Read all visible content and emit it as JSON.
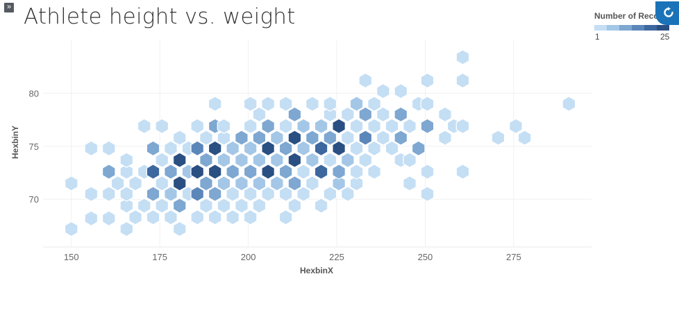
{
  "header": {
    "expand_icon": "double-chevron-right-icon",
    "title": "Athlete height vs. weight",
    "refresh_icon": "refresh-icon"
  },
  "legend": {
    "title": "Number of Records",
    "min": "1",
    "max": "25",
    "colors": [
      "#c4def4",
      "#a4c7e7",
      "#7ea7d1",
      "#5b86ba",
      "#3d679f",
      "#2a4f83"
    ]
  },
  "chart_data": {
    "type": "hexbin",
    "title": "Athlete height vs. weight",
    "xlabel": "HexbinX",
    "ylabel": "HexbinY",
    "xlim": [
      142,
      297
    ],
    "ylim": [
      65.5,
      85
    ],
    "x_ticks": [
      150,
      175,
      200,
      225,
      250,
      275
    ],
    "y_ticks": [
      70,
      75,
      80
    ],
    "grid": true,
    "color_measure": "Number of Records",
    "color_range": [
      1,
      25
    ],
    "points": [
      {
        "x": 150,
        "y": 67.2,
        "v": 1
      },
      {
        "x": 150,
        "y": 71.5,
        "v": 1
      },
      {
        "x": 155.6,
        "y": 68.2,
        "v": 1
      },
      {
        "x": 155.6,
        "y": 70.5,
        "v": 1
      },
      {
        "x": 155.6,
        "y": 74.8,
        "v": 1
      },
      {
        "x": 160.6,
        "y": 68.2,
        "v": 1
      },
      {
        "x": 160.6,
        "y": 70.5,
        "v": 1
      },
      {
        "x": 160.6,
        "y": 72.6,
        "v": 3
      },
      {
        "x": 160.6,
        "y": 74.8,
        "v": 1
      },
      {
        "x": 163.1,
        "y": 71.5,
        "v": 1
      },
      {
        "x": 165.6,
        "y": 67.2,
        "v": 1
      },
      {
        "x": 165.6,
        "y": 69.4,
        "v": 1
      },
      {
        "x": 165.6,
        "y": 70.5,
        "v": 1
      },
      {
        "x": 165.6,
        "y": 72.6,
        "v": 1
      },
      {
        "x": 165.6,
        "y": 73.7,
        "v": 1
      },
      {
        "x": 168.1,
        "y": 68.3,
        "v": 1
      },
      {
        "x": 168.1,
        "y": 71.5,
        "v": 1
      },
      {
        "x": 170.6,
        "y": 69.4,
        "v": 1
      },
      {
        "x": 170.6,
        "y": 72.6,
        "v": 1
      },
      {
        "x": 170.6,
        "y": 76.9,
        "v": 1
      },
      {
        "x": 173.1,
        "y": 68.3,
        "v": 1
      },
      {
        "x": 173.1,
        "y": 70.5,
        "v": 3
      },
      {
        "x": 173.1,
        "y": 72.6,
        "v": 5
      },
      {
        "x": 173.1,
        "y": 74.8,
        "v": 3
      },
      {
        "x": 175.6,
        "y": 69.4,
        "v": 1
      },
      {
        "x": 175.6,
        "y": 71.5,
        "v": 1
      },
      {
        "x": 175.6,
        "y": 73.7,
        "v": 1
      },
      {
        "x": 175.6,
        "y": 76.9,
        "v": 1
      },
      {
        "x": 178.1,
        "y": 68.3,
        "v": 1
      },
      {
        "x": 178.1,
        "y": 70.5,
        "v": 2
      },
      {
        "x": 178.1,
        "y": 72.6,
        "v": 3
      },
      {
        "x": 178.1,
        "y": 74.8,
        "v": 1
      },
      {
        "x": 180.6,
        "y": 67.2,
        "v": 1
      },
      {
        "x": 180.6,
        "y": 69.4,
        "v": 3
      },
      {
        "x": 180.6,
        "y": 71.5,
        "v": 6
      },
      {
        "x": 180.6,
        "y": 73.7,
        "v": 6
      },
      {
        "x": 180.6,
        "y": 75.8,
        "v": 1
      },
      {
        "x": 183.1,
        "y": 70.5,
        "v": 1
      },
      {
        "x": 183.1,
        "y": 72.6,
        "v": 2
      },
      {
        "x": 183.1,
        "y": 74.8,
        "v": 1
      },
      {
        "x": 185.6,
        "y": 68.3,
        "v": 1
      },
      {
        "x": 185.6,
        "y": 70.5,
        "v": 4
      },
      {
        "x": 185.6,
        "y": 72.6,
        "v": 6
      },
      {
        "x": 185.6,
        "y": 74.8,
        "v": 4
      },
      {
        "x": 185.6,
        "y": 76.9,
        "v": 1
      },
      {
        "x": 188.1,
        "y": 69.4,
        "v": 1
      },
      {
        "x": 188.1,
        "y": 71.5,
        "v": 3
      },
      {
        "x": 188.1,
        "y": 73.7,
        "v": 3
      },
      {
        "x": 188.1,
        "y": 75.8,
        "v": 1
      },
      {
        "x": 190.6,
        "y": 68.3,
        "v": 1
      },
      {
        "x": 190.6,
        "y": 70.5,
        "v": 3
      },
      {
        "x": 190.6,
        "y": 72.6,
        "v": 6
      },
      {
        "x": 190.6,
        "y": 74.8,
        "v": 6
      },
      {
        "x": 190.6,
        "y": 76.9,
        "v": 3
      },
      {
        "x": 190.6,
        "y": 79.0,
        "v": 1
      },
      {
        "x": 193.1,
        "y": 69.4,
        "v": 1
      },
      {
        "x": 193.1,
        "y": 71.5,
        "v": 2
      },
      {
        "x": 193.1,
        "y": 73.7,
        "v": 2
      },
      {
        "x": 193.1,
        "y": 75.8,
        "v": 1
      },
      {
        "x": 193.1,
        "y": 76.9,
        "v": 1
      },
      {
        "x": 195.6,
        "y": 68.3,
        "v": 1
      },
      {
        "x": 195.6,
        "y": 70.5,
        "v": 1
      },
      {
        "x": 195.6,
        "y": 72.6,
        "v": 3
      },
      {
        "x": 195.6,
        "y": 74.8,
        "v": 2
      },
      {
        "x": 198.1,
        "y": 69.4,
        "v": 1
      },
      {
        "x": 198.1,
        "y": 71.5,
        "v": 2
      },
      {
        "x": 198.1,
        "y": 73.7,
        "v": 2
      },
      {
        "x": 198.1,
        "y": 75.8,
        "v": 3
      },
      {
        "x": 200.6,
        "y": 68.3,
        "v": 1
      },
      {
        "x": 200.6,
        "y": 70.5,
        "v": 1
      },
      {
        "x": 200.6,
        "y": 72.6,
        "v": 3
      },
      {
        "x": 200.6,
        "y": 74.8,
        "v": 2
      },
      {
        "x": 200.6,
        "y": 76.9,
        "v": 1
      },
      {
        "x": 200.6,
        "y": 79.0,
        "v": 1
      },
      {
        "x": 203.1,
        "y": 69.4,
        "v": 1
      },
      {
        "x": 203.1,
        "y": 71.5,
        "v": 2
      },
      {
        "x": 203.1,
        "y": 73.7,
        "v": 2
      },
      {
        "x": 203.1,
        "y": 75.8,
        "v": 3
      },
      {
        "x": 203.1,
        "y": 78.0,
        "v": 1
      },
      {
        "x": 205.6,
        "y": 70.5,
        "v": 1
      },
      {
        "x": 205.6,
        "y": 72.6,
        "v": 6
      },
      {
        "x": 205.6,
        "y": 74.8,
        "v": 6
      },
      {
        "x": 205.6,
        "y": 76.9,
        "v": 3
      },
      {
        "x": 205.6,
        "y": 79.0,
        "v": 1
      },
      {
        "x": 208.1,
        "y": 71.5,
        "v": 2
      },
      {
        "x": 208.1,
        "y": 73.7,
        "v": 2
      },
      {
        "x": 208.1,
        "y": 75.8,
        "v": 2
      },
      {
        "x": 210.6,
        "y": 68.3,
        "v": 1
      },
      {
        "x": 210.6,
        "y": 70.5,
        "v": 1
      },
      {
        "x": 210.6,
        "y": 72.6,
        "v": 3
      },
      {
        "x": 210.6,
        "y": 74.8,
        "v": 3
      },
      {
        "x": 210.6,
        "y": 76.9,
        "v": 1
      },
      {
        "x": 210.6,
        "y": 79.0,
        "v": 1
      },
      {
        "x": 213.1,
        "y": 69.4,
        "v": 1
      },
      {
        "x": 213.1,
        "y": 71.5,
        "v": 3
      },
      {
        "x": 213.1,
        "y": 73.7,
        "v": 6
      },
      {
        "x": 213.1,
        "y": 75.8,
        "v": 6
      },
      {
        "x": 213.1,
        "y": 78.0,
        "v": 3
      },
      {
        "x": 215.6,
        "y": 70.5,
        "v": 1
      },
      {
        "x": 215.6,
        "y": 72.6,
        "v": 1
      },
      {
        "x": 215.6,
        "y": 74.8,
        "v": 2
      },
      {
        "x": 215.6,
        "y": 76.9,
        "v": 2
      },
      {
        "x": 218.1,
        "y": 71.5,
        "v": 1
      },
      {
        "x": 218.1,
        "y": 73.7,
        "v": 2
      },
      {
        "x": 218.1,
        "y": 75.8,
        "v": 3
      },
      {
        "x": 218.1,
        "y": 79.0,
        "v": 1
      },
      {
        "x": 220.6,
        "y": 69.4,
        "v": 1
      },
      {
        "x": 220.6,
        "y": 72.6,
        "v": 5
      },
      {
        "x": 220.6,
        "y": 74.8,
        "v": 5
      },
      {
        "x": 220.6,
        "y": 76.9,
        "v": 2
      },
      {
        "x": 223.1,
        "y": 70.5,
        "v": 1
      },
      {
        "x": 223.1,
        "y": 73.7,
        "v": 1
      },
      {
        "x": 223.1,
        "y": 75.8,
        "v": 3
      },
      {
        "x": 223.1,
        "y": 78.0,
        "v": 1
      },
      {
        "x": 223.1,
        "y": 79.0,
        "v": 1
      },
      {
        "x": 225.6,
        "y": 71.5,
        "v": 2
      },
      {
        "x": 225.6,
        "y": 72.6,
        "v": 3
      },
      {
        "x": 225.6,
        "y": 74.8,
        "v": 6
      },
      {
        "x": 225.6,
        "y": 76.9,
        "v": 6
      },
      {
        "x": 228.1,
        "y": 70.5,
        "v": 1
      },
      {
        "x": 228.1,
        "y": 73.7,
        "v": 2
      },
      {
        "x": 228.1,
        "y": 75.8,
        "v": 1
      },
      {
        "x": 228.1,
        "y": 78.0,
        "v": 1
      },
      {
        "x": 230.6,
        "y": 71.5,
        "v": 1
      },
      {
        "x": 230.6,
        "y": 72.6,
        "v": 1
      },
      {
        "x": 230.6,
        "y": 74.8,
        "v": 1
      },
      {
        "x": 230.6,
        "y": 76.9,
        "v": 1
      },
      {
        "x": 230.6,
        "y": 79.0,
        "v": 2
      },
      {
        "x": 233.1,
        "y": 73.7,
        "v": 1
      },
      {
        "x": 233.1,
        "y": 75.8,
        "v": 4
      },
      {
        "x": 233.1,
        "y": 78.0,
        "v": 3
      },
      {
        "x": 233.1,
        "y": 81.2,
        "v": 1
      },
      {
        "x": 235.6,
        "y": 72.6,
        "v": 1
      },
      {
        "x": 235.6,
        "y": 74.8,
        "v": 1
      },
      {
        "x": 235.6,
        "y": 76.9,
        "v": 1
      },
      {
        "x": 235.6,
        "y": 79.0,
        "v": 1
      },
      {
        "x": 238.1,
        "y": 75.8,
        "v": 1
      },
      {
        "x": 238.1,
        "y": 78.0,
        "v": 1
      },
      {
        "x": 238.1,
        "y": 80.2,
        "v": 1
      },
      {
        "x": 240.6,
        "y": 74.8,
        "v": 1
      },
      {
        "x": 240.6,
        "y": 76.9,
        "v": 1
      },
      {
        "x": 243.1,
        "y": 73.7,
        "v": 1
      },
      {
        "x": 243.1,
        "y": 75.8,
        "v": 3
      },
      {
        "x": 243.1,
        "y": 78.0,
        "v": 3
      },
      {
        "x": 243.1,
        "y": 80.2,
        "v": 1
      },
      {
        "x": 245.6,
        "y": 71.5,
        "v": 1
      },
      {
        "x": 245.6,
        "y": 73.7,
        "v": 1
      },
      {
        "x": 245.6,
        "y": 76.9,
        "v": 1
      },
      {
        "x": 248.1,
        "y": 74.8,
        "v": 3
      },
      {
        "x": 248.1,
        "y": 79.0,
        "v": 1
      },
      {
        "x": 250.6,
        "y": 70.5,
        "v": 1
      },
      {
        "x": 250.6,
        "y": 72.6,
        "v": 1
      },
      {
        "x": 250.6,
        "y": 76.9,
        "v": 3
      },
      {
        "x": 250.6,
        "y": 79.0,
        "v": 1
      },
      {
        "x": 250.6,
        "y": 81.2,
        "v": 1
      },
      {
        "x": 255.6,
        "y": 75.8,
        "v": 1
      },
      {
        "x": 255.6,
        "y": 78.0,
        "v": 1
      },
      {
        "x": 258.1,
        "y": 76.9,
        "v": 1
      },
      {
        "x": 260.6,
        "y": 72.6,
        "v": 1
      },
      {
        "x": 260.6,
        "y": 76.9,
        "v": 1
      },
      {
        "x": 260.6,
        "y": 81.2,
        "v": 1
      },
      {
        "x": 260.6,
        "y": 83.4,
        "v": 1
      },
      {
        "x": 270.6,
        "y": 75.8,
        "v": 1
      },
      {
        "x": 275.6,
        "y": 76.9,
        "v": 1
      },
      {
        "x": 278.1,
        "y": 75.8,
        "v": 1
      },
      {
        "x": 290.6,
        "y": 79.0,
        "v": 1
      }
    ]
  }
}
